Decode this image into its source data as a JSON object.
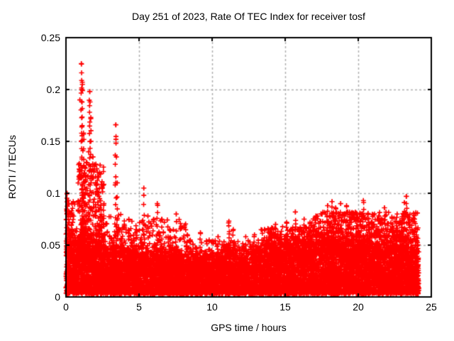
{
  "figure": {
    "title": "Day 251 of 2023, Rate Of TEC Index for receiver tosf",
    "background": "#ffffff",
    "text_color": "#000000"
  },
  "chart_data": {
    "type": "scatter",
    "title": "Day 251 of 2023, Rate Of TEC Index for receiver tosf",
    "xlabel": "GPS time / hours",
    "ylabel": "ROTI / TECUs",
    "xlim": [
      0,
      25
    ],
    "ylim": [
      0,
      0.25
    ],
    "xticks": {
      "values": [
        0,
        5,
        10,
        15,
        20,
        25
      ],
      "labels": [
        "0",
        "5",
        "10",
        "15",
        "20",
        "25"
      ]
    },
    "yticks": {
      "values": [
        0,
        0.05,
        0.1,
        0.15,
        0.2,
        0.25
      ],
      "labels": [
        "0",
        "0.05",
        "0.1",
        "0.15",
        "0.2",
        "0.25"
      ]
    },
    "grid": {
      "enabled": true,
      "style": "dashed",
      "color": "#b0b0b0",
      "at": "major-ticks-both-axes"
    },
    "legend": "none",
    "border_color": "#000000",
    "series": [
      {
        "name": "ROTI",
        "marker": "+",
        "marker_color": "#ff0000",
        "marker_size_px": 7,
        "time_span_hours": [
          0,
          24.15
        ],
        "description": "Dense baseline band ~0.005-0.05 TECU all day with vertical spike clusters; strongest activity hours 1-2 peaking 0.225, spike 0.166 at 3.4h, increasing spike forest 0.05-0.097 from hour 17 to 24",
        "baseline": {
          "count": 9500,
          "min": 0.003,
          "hours": [
            0,
            1,
            2,
            3,
            4,
            5,
            6,
            7,
            8,
            9,
            10,
            11,
            12,
            13,
            14,
            15,
            16,
            17,
            18,
            19,
            20,
            21,
            22,
            23,
            24.15
          ],
          "top": [
            0.05,
            0.058,
            0.052,
            0.047,
            0.044,
            0.045,
            0.044,
            0.042,
            0.04,
            0.04,
            0.039,
            0.043,
            0.041,
            0.044,
            0.048,
            0.05,
            0.052,
            0.054,
            0.057,
            0.056,
            0.053,
            0.051,
            0.053,
            0.053,
            0.048
          ]
        },
        "plumes": [
          {
            "t0": 0.0,
            "t1": 0.6,
            "v0": 0.04,
            "v1": 0.095,
            "n": 60
          },
          {
            "t0": 0.8,
            "t1": 2.6,
            "v0": 0.04,
            "v1": 0.13,
            "n": 260
          },
          {
            "t0": 2.6,
            "t1": 4.2,
            "v0": 0.04,
            "v1": 0.08,
            "n": 90
          },
          {
            "t0": 4.2,
            "t1": 8.2,
            "v0": 0.04,
            "v1": 0.075,
            "n": 140
          },
          {
            "t0": 8.2,
            "t1": 13.2,
            "v0": 0.038,
            "v1": 0.055,
            "n": 120
          },
          {
            "t0": 13.2,
            "t1": 16.8,
            "v0": 0.04,
            "v1": 0.068,
            "n": 260
          },
          {
            "t0": 16.8,
            "t1": 24.1,
            "v0": 0.042,
            "v1": 0.082,
            "n": 700
          }
        ],
        "spikes": [
          {
            "t": 0.08,
            "vmax": 0.1,
            "n": 16
          },
          {
            "t": 0.2,
            "vmax": 0.09,
            "n": 10
          },
          {
            "t": 0.45,
            "vmax": 0.072,
            "n": 6
          },
          {
            "t": 1.05,
            "vmax": 0.225,
            "n": 26
          },
          {
            "t": 1.12,
            "vmax": 0.205,
            "n": 22
          },
          {
            "t": 1.2,
            "vmax": 0.158,
            "n": 16
          },
          {
            "t": 1.3,
            "vmax": 0.125,
            "n": 14
          },
          {
            "t": 1.62,
            "vmax": 0.198,
            "n": 24
          },
          {
            "t": 1.7,
            "vmax": 0.173,
            "n": 12
          },
          {
            "t": 1.85,
            "vmax": 0.135,
            "n": 10
          },
          {
            "t": 2.05,
            "vmax": 0.128,
            "n": 10
          },
          {
            "t": 2.3,
            "vmax": 0.105,
            "n": 8
          },
          {
            "t": 2.6,
            "vmax": 0.09,
            "n": 6
          },
          {
            "t": 3.4,
            "vmax": 0.166,
            "n": 14
          },
          {
            "t": 3.5,
            "vmax": 0.11,
            "n": 7
          },
          {
            "t": 4.3,
            "vmax": 0.075,
            "n": 5
          },
          {
            "t": 4.8,
            "vmax": 0.065,
            "n": 4
          },
          {
            "t": 5.33,
            "vmax": 0.105,
            "n": 9
          },
          {
            "t": 5.6,
            "vmax": 0.078,
            "n": 5
          },
          {
            "t": 6.25,
            "vmax": 0.09,
            "n": 8
          },
          {
            "t": 6.55,
            "vmax": 0.075,
            "n": 5
          },
          {
            "t": 7.1,
            "vmax": 0.065,
            "n": 4
          },
          {
            "t": 7.55,
            "vmax": 0.08,
            "n": 6
          },
          {
            "t": 8.3,
            "vmax": 0.06,
            "n": 4
          },
          {
            "t": 9.2,
            "vmax": 0.062,
            "n": 4
          },
          {
            "t": 9.8,
            "vmax": 0.055,
            "n": 3
          },
          {
            "t": 10.4,
            "vmax": 0.058,
            "n": 4
          },
          {
            "t": 11.15,
            "vmax": 0.073,
            "n": 9
          },
          {
            "t": 11.45,
            "vmax": 0.065,
            "n": 5
          },
          {
            "t": 12.3,
            "vmax": 0.058,
            "n": 4
          },
          {
            "t": 12.9,
            "vmax": 0.06,
            "n": 4
          },
          {
            "t": 13.6,
            "vmax": 0.065,
            "n": 5
          },
          {
            "t": 14.0,
            "vmax": 0.065,
            "n": 5
          },
          {
            "t": 14.35,
            "vmax": 0.07,
            "n": 6
          },
          {
            "t": 15.1,
            "vmax": 0.072,
            "n": 7
          },
          {
            "t": 15.7,
            "vmax": 0.082,
            "n": 8
          },
          {
            "t": 16.3,
            "vmax": 0.075,
            "n": 7
          },
          {
            "t": 16.7,
            "vmax": 0.072,
            "n": 6
          },
          {
            "t": 17.1,
            "vmax": 0.078,
            "n": 7
          },
          {
            "t": 17.45,
            "vmax": 0.08,
            "n": 7
          },
          {
            "t": 17.9,
            "vmax": 0.088,
            "n": 8
          },
          {
            "t": 18.2,
            "vmax": 0.092,
            "n": 9
          },
          {
            "t": 18.45,
            "vmax": 0.086,
            "n": 8
          },
          {
            "t": 18.8,
            "vmax": 0.09,
            "n": 8
          },
          {
            "t": 19.2,
            "vmax": 0.088,
            "n": 8
          },
          {
            "t": 19.55,
            "vmax": 0.081,
            "n": 7
          },
          {
            "t": 20.0,
            "vmax": 0.075,
            "n": 6
          },
          {
            "t": 20.35,
            "vmax": 0.093,
            "n": 9
          },
          {
            "t": 20.7,
            "vmax": 0.072,
            "n": 5
          },
          {
            "t": 21.3,
            "vmax": 0.075,
            "n": 6
          },
          {
            "t": 21.8,
            "vmax": 0.086,
            "n": 7
          },
          {
            "t": 22.3,
            "vmax": 0.077,
            "n": 6
          },
          {
            "t": 22.6,
            "vmax": 0.072,
            "n": 5
          },
          {
            "t": 23.15,
            "vmax": 0.091,
            "n": 9
          },
          {
            "t": 23.3,
            "vmax": 0.097,
            "n": 10
          },
          {
            "t": 23.75,
            "vmax": 0.073,
            "n": 5
          },
          {
            "t": 24.05,
            "vmax": 0.065,
            "n": 4
          }
        ],
        "notable_peaks": [
          [
            1.05,
            0.225
          ],
          [
            1.12,
            0.207
          ],
          [
            1.08,
            0.2
          ],
          [
            1.62,
            0.198
          ],
          [
            0.95,
            0.19
          ],
          [
            1.65,
            0.188
          ],
          [
            1.7,
            0.173
          ],
          [
            3.4,
            0.166
          ],
          [
            1.2,
            0.158
          ],
          [
            3.42,
            0.152
          ],
          [
            1.05,
            0.15
          ],
          [
            1.55,
            0.14
          ],
          [
            3.45,
            0.135
          ],
          [
            2.05,
            0.128
          ],
          [
            1.3,
            0.125
          ],
          [
            3.4,
            0.11
          ],
          [
            5.33,
            0.105
          ],
          [
            0.08,
            0.1
          ],
          [
            23.3,
            0.097
          ],
          [
            20.35,
            0.093
          ],
          [
            18.2,
            0.092
          ],
          [
            23.15,
            0.091
          ],
          [
            6.25,
            0.09
          ],
          [
            18.8,
            0.09
          ]
        ],
        "seed": 20230251
      }
    ]
  }
}
